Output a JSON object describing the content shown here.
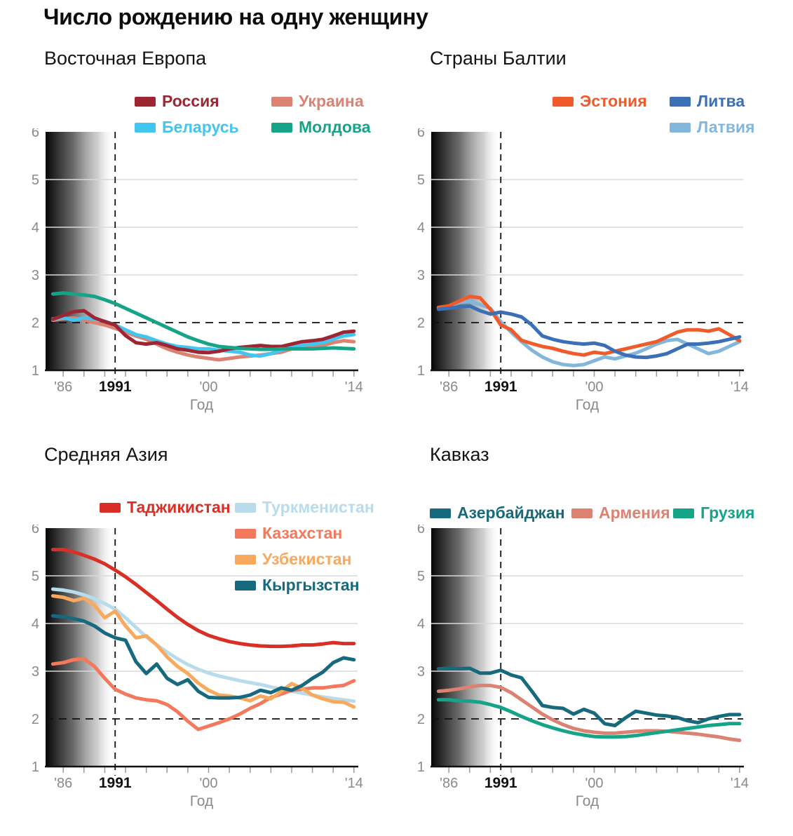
{
  "page_title": "Число рождению на одну женщину",
  "axis_style": {
    "grid_color": "#d9d9d9",
    "axis_color": "#111111",
    "tick_color": "#9a9a9a",
    "label_color": "#8a8a8a",
    "emphasis_color": "#111111",
    "replacement_dash": "11 8",
    "era_dash": "9 7"
  },
  "chart_data": [
    {
      "type": "line",
      "title": "Восточная Европа",
      "x_label": "Год",
      "ylim": [
        1,
        6
      ],
      "y_ticks": [
        1,
        2,
        3,
        4,
        5,
        6
      ],
      "x_tick_labels": [
        {
          "year": 1986,
          "label": "'86",
          "emphasis": false
        },
        {
          "year": 1991,
          "label": "1991",
          "emphasis": true
        },
        {
          "year": 2000,
          "label": "'00",
          "emphasis": false
        },
        {
          "year": 2014,
          "label": "'14",
          "emphasis": false
        }
      ],
      "replacement_line_y": 2,
      "era_shading_until": 1991,
      "years": [
        1985,
        1986,
        1987,
        1988,
        1989,
        1990,
        1991,
        1992,
        1993,
        1994,
        1995,
        1996,
        1997,
        1998,
        1999,
        2000,
        2001,
        2002,
        2003,
        2004,
        2005,
        2006,
        2007,
        2008,
        2009,
        2010,
        2011,
        2012,
        2013,
        2014
      ],
      "series": [
        {
          "name": "Россия",
          "color": "#9e2532",
          "values": [
            2.07,
            2.15,
            2.23,
            2.25,
            2.1,
            2.02,
            1.95,
            1.73,
            1.58,
            1.55,
            1.58,
            1.52,
            1.45,
            1.42,
            1.38,
            1.37,
            1.4,
            1.45,
            1.48,
            1.5,
            1.52,
            1.5,
            1.5,
            1.55,
            1.6,
            1.62,
            1.65,
            1.72,
            1.8,
            1.82
          ]
        },
        {
          "name": "Украина",
          "color": "#db8273",
          "values": [
            2.05,
            2.08,
            2.1,
            2.05,
            2.0,
            1.95,
            1.88,
            1.8,
            1.72,
            1.65,
            1.55,
            1.45,
            1.38,
            1.32,
            1.28,
            1.25,
            1.22,
            1.25,
            1.28,
            1.3,
            1.32,
            1.35,
            1.38,
            1.45,
            1.48,
            1.5,
            1.52,
            1.58,
            1.62,
            1.6
          ]
        },
        {
          "name": "Беларусь",
          "color": "#41c6f0",
          "values": [
            2.08,
            2.1,
            2.05,
            2.1,
            2.08,
            2.03,
            1.95,
            1.85,
            1.75,
            1.7,
            1.62,
            1.55,
            1.5,
            1.48,
            1.45,
            1.45,
            1.42,
            1.4,
            1.38,
            1.32,
            1.3,
            1.35,
            1.42,
            1.48,
            1.52,
            1.55,
            1.58,
            1.65,
            1.72,
            1.75
          ]
        },
        {
          "name": "Молдова",
          "color": "#16a489",
          "values": [
            2.6,
            2.62,
            2.6,
            2.58,
            2.55,
            2.48,
            2.4,
            2.3,
            2.2,
            2.1,
            2.0,
            1.9,
            1.8,
            1.7,
            1.62,
            1.55,
            1.5,
            1.48,
            1.46,
            1.45,
            1.44,
            1.44,
            1.45,
            1.45,
            1.45,
            1.45,
            1.46,
            1.47,
            1.46,
            1.45
          ]
        }
      ],
      "draw_order": [
        1,
        2,
        0,
        3
      ],
      "legend_columns": [
        [
          0,
          2
        ],
        [
          1,
          3
        ]
      ]
    },
    {
      "type": "line",
      "title": "Страны Балтии",
      "x_label": "Год",
      "ylim": [
        1,
        6
      ],
      "y_ticks": [
        1,
        2,
        3,
        4,
        5,
        6
      ],
      "x_tick_labels": [
        {
          "year": 1986,
          "label": "'86",
          "emphasis": false
        },
        {
          "year": 1991,
          "label": "1991",
          "emphasis": true
        },
        {
          "year": 2000,
          "label": "'00",
          "emphasis": false
        },
        {
          "year": 2014,
          "label": "'14",
          "emphasis": false
        }
      ],
      "replacement_line_y": 2,
      "era_shading_until": 1991,
      "years": [
        1985,
        1986,
        1987,
        1988,
        1989,
        1990,
        1991,
        1992,
        1993,
        1994,
        1995,
        1996,
        1997,
        1998,
        1999,
        2000,
        2001,
        2002,
        2003,
        2004,
        2005,
        2006,
        2007,
        2008,
        2009,
        2010,
        2011,
        2012,
        2013,
        2014
      ],
      "series": [
        {
          "name": "Эстония",
          "color": "#f15a29",
          "values": [
            2.32,
            2.35,
            2.45,
            2.55,
            2.52,
            2.28,
            1.95,
            1.85,
            1.63,
            1.56,
            1.5,
            1.46,
            1.4,
            1.35,
            1.32,
            1.38,
            1.35,
            1.4,
            1.45,
            1.5,
            1.55,
            1.6,
            1.7,
            1.8,
            1.85,
            1.85,
            1.82,
            1.87,
            1.75,
            1.62
          ]
        },
        {
          "name": "Литва",
          "color": "#3b6fb6",
          "values": [
            2.28,
            2.3,
            2.33,
            2.35,
            2.25,
            2.18,
            2.22,
            2.18,
            2.12,
            1.95,
            1.72,
            1.65,
            1.6,
            1.57,
            1.55,
            1.57,
            1.52,
            1.4,
            1.32,
            1.28,
            1.27,
            1.3,
            1.35,
            1.45,
            1.55,
            1.55,
            1.57,
            1.6,
            1.65,
            1.7
          ]
        },
        {
          "name": "Латвия",
          "color": "#82b6db",
          "values": [
            2.3,
            2.35,
            2.42,
            2.45,
            2.38,
            2.3,
            2.02,
            1.8,
            1.6,
            1.42,
            1.28,
            1.18,
            1.12,
            1.1,
            1.12,
            1.2,
            1.28,
            1.24,
            1.3,
            1.36,
            1.45,
            1.55,
            1.62,
            1.65,
            1.55,
            1.45,
            1.35,
            1.4,
            1.5,
            1.6
          ]
        }
      ],
      "draw_order": [
        2,
        0,
        1
      ],
      "legend_columns": [
        [
          0
        ],
        [
          1,
          2
        ]
      ]
    },
    {
      "type": "line",
      "title": "Средняя Азия",
      "x_label": "Год",
      "ylim": [
        1,
        6
      ],
      "y_ticks": [
        1,
        2,
        3,
        4,
        5,
        6
      ],
      "x_tick_labels": [
        {
          "year": 1986,
          "label": "'86",
          "emphasis": false
        },
        {
          "year": 1991,
          "label": "1991",
          "emphasis": true
        },
        {
          "year": 2000,
          "label": "'00",
          "emphasis": false
        },
        {
          "year": 2014,
          "label": "'14",
          "emphasis": false
        }
      ],
      "replacement_line_y": 2,
      "era_shading_until": 1991,
      "years": [
        1985,
        1986,
        1987,
        1988,
        1989,
        1990,
        1991,
        1992,
        1993,
        1994,
        1995,
        1996,
        1997,
        1998,
        1999,
        2000,
        2001,
        2002,
        2003,
        2004,
        2005,
        2006,
        2007,
        2008,
        2009,
        2010,
        2011,
        2012,
        2013,
        2014
      ],
      "series": [
        {
          "name": "Таджикистан",
          "color": "#d92f26",
          "values": [
            5.55,
            5.55,
            5.5,
            5.43,
            5.35,
            5.25,
            5.12,
            4.98,
            4.82,
            4.65,
            4.48,
            4.3,
            4.13,
            3.98,
            3.85,
            3.75,
            3.68,
            3.62,
            3.58,
            3.55,
            3.53,
            3.52,
            3.52,
            3.53,
            3.55,
            3.55,
            3.57,
            3.6,
            3.58,
            3.58
          ]
        },
        {
          "name": "Туркменистан",
          "color": "#b9dcec",
          "values": [
            4.72,
            4.7,
            4.66,
            4.6,
            4.52,
            4.42,
            4.3,
            4.12,
            3.92,
            3.72,
            3.55,
            3.4,
            3.26,
            3.14,
            3.04,
            2.96,
            2.9,
            2.85,
            2.8,
            2.76,
            2.72,
            2.67,
            2.62,
            2.58,
            2.54,
            2.5,
            2.46,
            2.43,
            2.4,
            2.37
          ]
        },
        {
          "name": "Казахстан",
          "color": "#f4785c",
          "values": [
            3.15,
            3.18,
            3.24,
            3.26,
            3.1,
            2.85,
            2.62,
            2.52,
            2.44,
            2.4,
            2.38,
            2.3,
            2.15,
            1.95,
            1.78,
            1.85,
            1.92,
            2.0,
            2.1,
            2.22,
            2.32,
            2.45,
            2.52,
            2.6,
            2.62,
            2.65,
            2.65,
            2.68,
            2.7,
            2.8
          ]
        },
        {
          "name": "Узбекистан",
          "color": "#f8a95d",
          "values": [
            4.58,
            4.55,
            4.48,
            4.53,
            4.38,
            4.12,
            4.26,
            3.95,
            3.7,
            3.74,
            3.55,
            3.3,
            3.1,
            2.95,
            2.75,
            2.6,
            2.5,
            2.48,
            2.44,
            2.38,
            2.48,
            2.42,
            2.58,
            2.74,
            2.64,
            2.5,
            2.42,
            2.36,
            2.35,
            2.25
          ]
        },
        {
          "name": "Кыргызстан",
          "color": "#17697e",
          "values": [
            4.16,
            4.14,
            4.1,
            4.05,
            3.95,
            3.8,
            3.7,
            3.65,
            3.2,
            2.95,
            3.15,
            2.85,
            2.72,
            2.82,
            2.58,
            2.45,
            2.44,
            2.44,
            2.45,
            2.5,
            2.6,
            2.55,
            2.65,
            2.6,
            2.7,
            2.85,
            2.98,
            3.18,
            3.28,
            3.24
          ]
        }
      ],
      "draw_order": [
        1,
        2,
        3,
        4,
        0
      ],
      "legend_columns": [
        [
          0
        ],
        [
          1,
          2,
          3,
          4
        ]
      ]
    },
    {
      "type": "line",
      "title": "Кавказ",
      "x_label": "Год",
      "ylim": [
        1,
        6
      ],
      "y_ticks": [
        1,
        2,
        3,
        4,
        5,
        6
      ],
      "x_tick_labels": [
        {
          "year": 1986,
          "label": "'86",
          "emphasis": false
        },
        {
          "year": 1991,
          "label": "1991",
          "emphasis": true
        },
        {
          "year": 2000,
          "label": "'00",
          "emphasis": false
        },
        {
          "year": 2014,
          "label": "'14",
          "emphasis": false
        }
      ],
      "replacement_line_y": 2,
      "era_shading_until": 1991,
      "years": [
        1985,
        1986,
        1987,
        1988,
        1989,
        1990,
        1991,
        1992,
        1993,
        1994,
        1995,
        1996,
        1997,
        1998,
        1999,
        2000,
        2001,
        2002,
        2003,
        2004,
        2005,
        2006,
        2007,
        2008,
        2009,
        2010,
        2011,
        2012,
        2013,
        2014
      ],
      "series": [
        {
          "name": "Азербайджан",
          "color": "#17697e",
          "values": [
            3.05,
            3.06,
            3.05,
            3.06,
            2.96,
            2.96,
            3.02,
            2.92,
            2.86,
            2.58,
            2.28,
            2.24,
            2.22,
            2.1,
            2.2,
            2.12,
            1.9,
            1.86,
            2.02,
            2.16,
            2.12,
            2.08,
            2.06,
            2.03,
            1.96,
            1.92,
            2.0,
            2.05,
            2.09,
            2.09
          ]
        },
        {
          "name": "Армения",
          "color": "#db8273",
          "values": [
            2.58,
            2.6,
            2.63,
            2.67,
            2.7,
            2.7,
            2.66,
            2.55,
            2.4,
            2.25,
            2.1,
            1.98,
            1.88,
            1.8,
            1.75,
            1.72,
            1.7,
            1.7,
            1.72,
            1.74,
            1.75,
            1.75,
            1.74,
            1.72,
            1.7,
            1.68,
            1.65,
            1.62,
            1.58,
            1.55
          ]
        },
        {
          "name": "Грузия",
          "color": "#16a489",
          "values": [
            2.4,
            2.4,
            2.38,
            2.37,
            2.35,
            2.3,
            2.24,
            2.15,
            2.05,
            1.96,
            1.88,
            1.81,
            1.75,
            1.7,
            1.66,
            1.63,
            1.62,
            1.62,
            1.63,
            1.65,
            1.68,
            1.71,
            1.74,
            1.77,
            1.8,
            1.83,
            1.86,
            1.88,
            1.9,
            1.9
          ]
        }
      ],
      "draw_order": [
        1,
        2,
        0
      ],
      "legend_columns": [
        [
          0
        ],
        [
          1
        ],
        [
          2
        ]
      ]
    }
  ]
}
